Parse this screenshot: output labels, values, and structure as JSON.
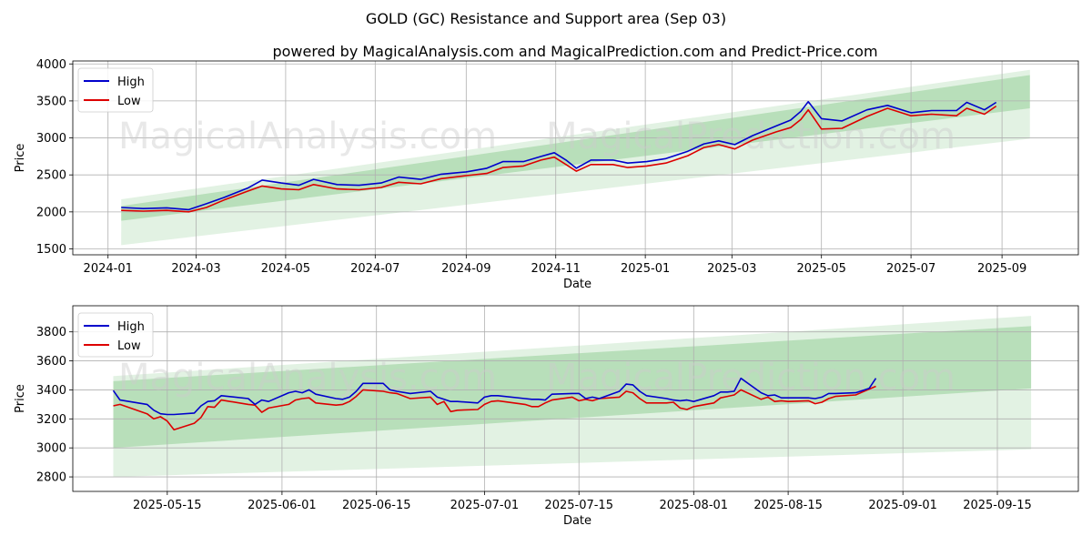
{
  "page": {
    "title": "GOLD (GC) Resistance and Support area (Sep 03)",
    "subtitle": "powered by MagicalAnalysis.com and MagicalPrediction.com and Predict-Price.com"
  },
  "colors": {
    "high": "#0000cc",
    "low": "#dd0000",
    "band": "#4caf50"
  },
  "watermarks": [
    "MagicalAnalysis.com",
    "MagicalPrediction.com"
  ],
  "chart_data": [
    {
      "type": "line",
      "xlabel": "Date",
      "ylabel": "Price",
      "x_ticks": [
        "2024-01",
        "2024-03",
        "2024-05",
        "2024-07",
        "2024-09",
        "2024-11",
        "2025-01",
        "2025-03",
        "2025-05",
        "2025-07",
        "2025-09"
      ],
      "y_ticks": [
        1500,
        2000,
        2500,
        3000,
        3500,
        4000
      ],
      "ylim": [
        1420,
        4040
      ],
      "legend": [
        "High",
        "Low"
      ],
      "legend_position": "top-left",
      "grid": true,
      "dates": [
        "2024-01-10",
        "2024-01-25",
        "2024-02-10",
        "2024-02-25",
        "2024-03-08",
        "2024-03-20",
        "2024-04-05",
        "2024-04-15",
        "2024-04-28",
        "2024-05-10",
        "2024-05-20",
        "2024-06-05",
        "2024-06-20",
        "2024-07-05",
        "2024-07-17",
        "2024-08-01",
        "2024-08-15",
        "2024-09-01",
        "2024-09-15",
        "2024-09-26",
        "2024-10-10",
        "2024-10-22",
        "2024-10-31",
        "2024-11-08",
        "2024-11-15",
        "2024-11-25",
        "2024-12-10",
        "2024-12-20",
        "2025-01-02",
        "2025-01-15",
        "2025-01-30",
        "2025-02-10",
        "2025-02-20",
        "2025-03-03",
        "2025-03-15",
        "2025-03-31",
        "2025-04-10",
        "2025-04-17",
        "2025-04-22",
        "2025-05-01",
        "2025-05-15",
        "2025-06-01",
        "2025-06-15",
        "2025-07-01",
        "2025-07-15",
        "2025-08-01",
        "2025-08-08",
        "2025-08-20",
        "2025-08-28"
      ],
      "series": [
        {
          "name": "High",
          "values": [
            2060,
            2045,
            2055,
            2030,
            2110,
            2195,
            2320,
            2430,
            2390,
            2360,
            2440,
            2370,
            2360,
            2390,
            2470,
            2440,
            2510,
            2540,
            2590,
            2680,
            2680,
            2750,
            2800,
            2700,
            2590,
            2700,
            2700,
            2660,
            2680,
            2720,
            2820,
            2920,
            2960,
            2910,
            3030,
            3160,
            3240,
            3360,
            3490,
            3260,
            3230,
            3380,
            3440,
            3340,
            3370,
            3370,
            3480,
            3380,
            3480
          ]
        },
        {
          "name": "Low",
          "values": [
            2020,
            2010,
            2020,
            2000,
            2060,
            2160,
            2280,
            2350,
            2310,
            2300,
            2370,
            2310,
            2300,
            2330,
            2400,
            2380,
            2450,
            2490,
            2520,
            2600,
            2620,
            2700,
            2740,
            2640,
            2550,
            2640,
            2640,
            2600,
            2620,
            2660,
            2760,
            2870,
            2910,
            2850,
            2970,
            3080,
            3140,
            3250,
            3380,
            3120,
            3130,
            3290,
            3400,
            3300,
            3320,
            3300,
            3400,
            3320,
            3430
          ]
        }
      ],
      "bands": [
        {
          "start_date": "2024-01-10",
          "end_date": "2025-09-20",
          "upper": [
            2170,
            3920
          ],
          "lower": [
            1550,
            2990
          ]
        },
        {
          "start_date": "2024-01-10",
          "end_date": "2025-09-20",
          "upper": [
            2080,
            3850
          ],
          "lower": [
            1880,
            3400
          ]
        }
      ]
    },
    {
      "type": "line",
      "xlabel": "Date",
      "ylabel": "Price",
      "x_ticks": [
        "2025-05-15",
        "2025-06-01",
        "2025-06-15",
        "2025-07-01",
        "2025-07-15",
        "2025-08-01",
        "2025-08-15",
        "2025-09-01",
        "2025-09-15"
      ],
      "y_ticks": [
        2800,
        3000,
        3200,
        3400,
        3600,
        3800
      ],
      "ylim": [
        2700,
        3980
      ],
      "legend": [
        "High",
        "Low"
      ],
      "legend_position": "top-left",
      "grid": true,
      "dates": [
        "2025-05-07",
        "2025-05-08",
        "2025-05-12",
        "2025-05-13",
        "2025-05-14",
        "2025-05-15",
        "2025-05-16",
        "2025-05-19",
        "2025-05-20",
        "2025-05-21",
        "2025-05-22",
        "2025-05-23",
        "2025-05-27",
        "2025-05-28",
        "2025-05-29",
        "2025-05-30",
        "2025-06-02",
        "2025-06-03",
        "2025-06-04",
        "2025-06-05",
        "2025-06-06",
        "2025-06-09",
        "2025-06-10",
        "2025-06-11",
        "2025-06-12",
        "2025-06-13",
        "2025-06-16",
        "2025-06-17",
        "2025-06-18",
        "2025-06-20",
        "2025-06-23",
        "2025-06-24",
        "2025-06-25",
        "2025-06-26",
        "2025-06-27",
        "2025-06-30",
        "2025-07-01",
        "2025-07-02",
        "2025-07-03",
        "2025-07-07",
        "2025-07-08",
        "2025-07-09",
        "2025-07-10",
        "2025-07-11",
        "2025-07-14",
        "2025-07-15",
        "2025-07-16",
        "2025-07-17",
        "2025-07-18",
        "2025-07-21",
        "2025-07-22",
        "2025-07-23",
        "2025-07-24",
        "2025-07-25",
        "2025-07-28",
        "2025-07-29",
        "2025-07-30",
        "2025-07-31",
        "2025-08-01",
        "2025-08-04",
        "2025-08-05",
        "2025-08-06",
        "2025-08-07",
        "2025-08-08",
        "2025-08-11",
        "2025-08-12",
        "2025-08-13",
        "2025-08-14",
        "2025-08-15",
        "2025-08-18",
        "2025-08-19",
        "2025-08-20",
        "2025-08-21",
        "2025-08-22",
        "2025-08-25",
        "2025-08-26",
        "2025-08-27",
        "2025-08-28"
      ],
      "series": [
        {
          "name": "High",
          "values": [
            3395,
            3330,
            3300,
            3260,
            3235,
            3230,
            3230,
            3240,
            3290,
            3320,
            3325,
            3360,
            3340,
            3300,
            3330,
            3320,
            3380,
            3390,
            3380,
            3400,
            3370,
            3340,
            3335,
            3350,
            3390,
            3445,
            3445,
            3400,
            3390,
            3375,
            3390,
            3350,
            3335,
            3320,
            3320,
            3310,
            3350,
            3360,
            3360,
            3340,
            3335,
            3335,
            3330,
            3370,
            3375,
            3375,
            3340,
            3350,
            3340,
            3390,
            3440,
            3435,
            3390,
            3360,
            3340,
            3330,
            3325,
            3330,
            3320,
            3360,
            3385,
            3385,
            3390,
            3480,
            3380,
            3360,
            3365,
            3345,
            3345,
            3345,
            3340,
            3350,
            3375,
            3375,
            3380,
            3395,
            3410,
            3480
          ]
        },
        {
          "name": "Low",
          "values": [
            3290,
            3300,
            3235,
            3200,
            3215,
            3185,
            3125,
            3170,
            3210,
            3285,
            3280,
            3330,
            3300,
            3295,
            3245,
            3275,
            3300,
            3330,
            3340,
            3345,
            3310,
            3295,
            3300,
            3320,
            3355,
            3400,
            3390,
            3380,
            3375,
            3340,
            3350,
            3300,
            3320,
            3250,
            3260,
            3265,
            3300,
            3320,
            3325,
            3300,
            3285,
            3285,
            3310,
            3330,
            3350,
            3325,
            3335,
            3325,
            3340,
            3350,
            3390,
            3380,
            3340,
            3310,
            3310,
            3315,
            3275,
            3265,
            3285,
            3310,
            3345,
            3355,
            3365,
            3400,
            3335,
            3350,
            3320,
            3325,
            3320,
            3325,
            3305,
            3315,
            3340,
            3355,
            3365,
            3385,
            3405,
            3425
          ]
        }
      ],
      "bands": [
        {
          "start_date": "2025-05-07",
          "end_date": "2025-09-20",
          "upper": [
            3495,
            3910
          ],
          "lower": [
            2800,
            2990
          ]
        },
        {
          "start_date": "2025-05-07",
          "end_date": "2025-09-20",
          "upper": [
            3460,
            3840
          ],
          "lower": [
            3000,
            3410
          ]
        }
      ]
    }
  ]
}
